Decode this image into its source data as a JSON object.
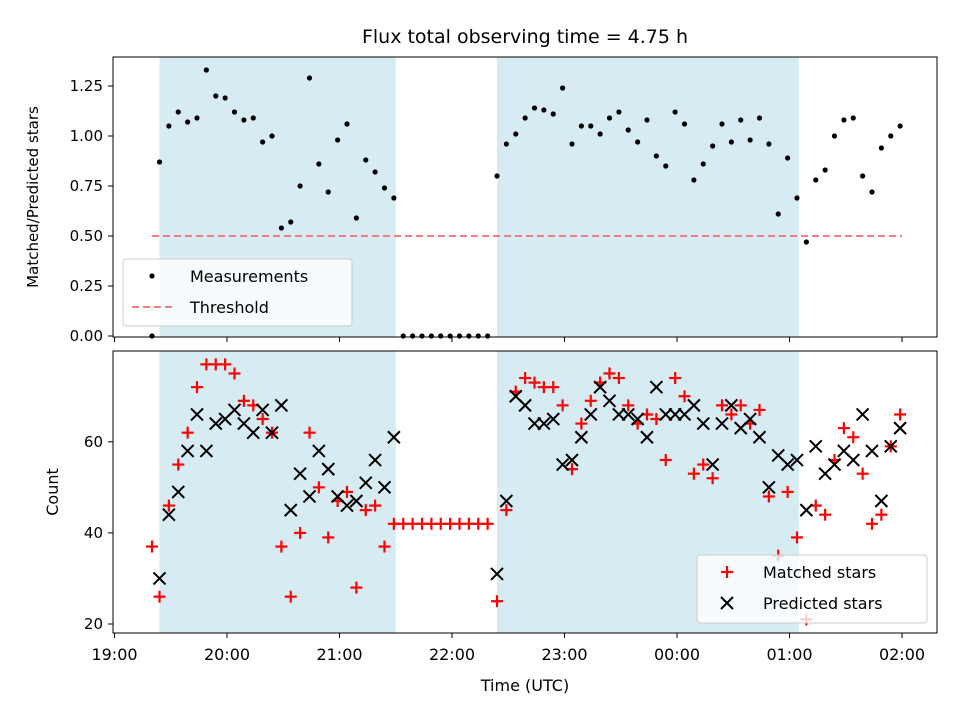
{
  "chart_data": [
    {
      "type": "scatter",
      "title": "Flux total observing time = 4.75 h",
      "xlabel": "",
      "ylabel": "Matched/Predicted stars",
      "ylim": [
        0,
        1.4
      ],
      "yticks": [
        "0.00",
        "0.25",
        "0.50",
        "0.75",
        "1.00",
        "1.25"
      ],
      "x_axis": "time (hours since 19:00 UTC, ticks shown on shared axis)",
      "shaded_intervals": [
        [
          "19:24",
          "21:30"
        ],
        [
          "22:24",
          "01:05"
        ]
      ],
      "threshold": {
        "name": "Threshold",
        "value": 0.5,
        "color": "#f08080",
        "style": "dashed",
        "from": "19:20",
        "to": "02:00"
      },
      "legend": {
        "position": "lower-left",
        "entries": [
          "Measurements",
          "Threshold"
        ]
      },
      "series": [
        {
          "name": "Measurements",
          "color": "#000000",
          "marker": "dot",
          "points": [
            [
              "19:20",
              0.0
            ],
            [
              "19:24",
              0.87
            ],
            [
              "19:29",
              1.05
            ],
            [
              "19:34",
              1.12
            ],
            [
              "19:39",
              1.07
            ],
            [
              "19:44",
              1.09
            ],
            [
              "19:49",
              1.33
            ],
            [
              "19:54",
              1.2
            ],
            [
              "19:59",
              1.19
            ],
            [
              "20:04",
              1.12
            ],
            [
              "20:09",
              1.08
            ],
            [
              "20:14",
              1.09
            ],
            [
              "20:19",
              0.97
            ],
            [
              "20:24",
              1.0
            ],
            [
              "20:29",
              0.54
            ],
            [
              "20:34",
              0.57
            ],
            [
              "20:39",
              0.75
            ],
            [
              "20:44",
              1.29
            ],
            [
              "20:49",
              0.86
            ],
            [
              "20:54",
              0.72
            ],
            [
              "20:59",
              0.98
            ],
            [
              "21:04",
              1.06
            ],
            [
              "21:09",
              0.59
            ],
            [
              "21:14",
              0.88
            ],
            [
              "21:19",
              0.82
            ],
            [
              "21:24",
              0.74
            ],
            [
              "21:29",
              0.69
            ],
            [
              "21:34",
              0.0
            ],
            [
              "21:39",
              0.0
            ],
            [
              "21:44",
              0.0
            ],
            [
              "21:49",
              0.0
            ],
            [
              "21:54",
              0.0
            ],
            [
              "21:59",
              0.0
            ],
            [
              "22:04",
              0.0
            ],
            [
              "22:09",
              0.0
            ],
            [
              "22:14",
              0.0
            ],
            [
              "22:19",
              0.0
            ],
            [
              "22:24",
              0.8
            ],
            [
              "22:29",
              0.96
            ],
            [
              "22:34",
              1.01
            ],
            [
              "22:39",
              1.09
            ],
            [
              "22:44",
              1.14
            ],
            [
              "22:49",
              1.13
            ],
            [
              "22:54",
              1.11
            ],
            [
              "22:59",
              1.24
            ],
            [
              "23:04",
              0.96
            ],
            [
              "23:09",
              1.05
            ],
            [
              "23:14",
              1.05
            ],
            [
              "23:19",
              1.01
            ],
            [
              "23:24",
              1.09
            ],
            [
              "23:29",
              1.12
            ],
            [
              "23:34",
              1.03
            ],
            [
              "23:39",
              0.97
            ],
            [
              "23:44",
              1.08
            ],
            [
              "23:49",
              0.9
            ],
            [
              "23:54",
              0.85
            ],
            [
              "23:59",
              1.12
            ],
            [
              "00:04",
              1.06
            ],
            [
              "00:09",
              0.78
            ],
            [
              "00:14",
              0.86
            ],
            [
              "00:19",
              0.95
            ],
            [
              "00:24",
              1.06
            ],
            [
              "00:29",
              0.97
            ],
            [
              "00:34",
              1.08
            ],
            [
              "00:39",
              0.98
            ],
            [
              "00:44",
              1.09
            ],
            [
              "00:49",
              0.96
            ],
            [
              "00:54",
              0.61
            ],
            [
              "00:59",
              0.89
            ],
            [
              "01:04",
              0.69
            ],
            [
              "01:09",
              0.47
            ],
            [
              "01:14",
              0.78
            ],
            [
              "01:19",
              0.83
            ],
            [
              "01:24",
              1.0
            ],
            [
              "01:29",
              1.08
            ],
            [
              "01:34",
              1.09
            ],
            [
              "01:39",
              0.8
            ],
            [
              "01:44",
              0.72
            ],
            [
              "01:49",
              0.94
            ],
            [
              "01:54",
              1.0
            ],
            [
              "01:59",
              1.05
            ]
          ]
        }
      ]
    },
    {
      "type": "scatter",
      "title": "",
      "xlabel": "Time (UTC)",
      "ylabel": "Count",
      "ylim": [
        19,
        78
      ],
      "yticks": [
        "20",
        "40",
        "60"
      ],
      "xticks": [
        "19:00",
        "20:00",
        "21:00",
        "22:00",
        "23:00",
        "00:00",
        "01:00",
        "02:00"
      ],
      "shaded_intervals": [
        [
          "19:24",
          "21:30"
        ],
        [
          "22:24",
          "01:05"
        ]
      ],
      "legend": {
        "position": "lower-right",
        "entries": [
          "Matched stars",
          "Predicted stars"
        ]
      },
      "series": [
        {
          "name": "Matched stars",
          "color": "#ff0000",
          "marker": "plus",
          "points": [
            [
              "19:20",
              37
            ],
            [
              "19:24",
              26
            ],
            [
              "19:29",
              46
            ],
            [
              "19:34",
              55
            ],
            [
              "19:39",
              62
            ],
            [
              "19:44",
              72
            ],
            [
              "19:49",
              77
            ],
            [
              "19:54",
              77
            ],
            [
              "19:59",
              77
            ],
            [
              "20:04",
              75
            ],
            [
              "20:09",
              69
            ],
            [
              "20:14",
              68
            ],
            [
              "20:19",
              65
            ],
            [
              "20:24",
              62
            ],
            [
              "20:29",
              37
            ],
            [
              "20:34",
              26
            ],
            [
              "20:39",
              40
            ],
            [
              "20:44",
              62
            ],
            [
              "20:49",
              50
            ],
            [
              "20:54",
              39
            ],
            [
              "20:59",
              47
            ],
            [
              "21:04",
              49
            ],
            [
              "21:09",
              28
            ],
            [
              "21:14",
              45
            ],
            [
              "21:19",
              46
            ],
            [
              "21:24",
              37
            ],
            [
              "21:29",
              42
            ],
            [
              "21:34",
              42
            ],
            [
              "21:39",
              42
            ],
            [
              "21:44",
              42
            ],
            [
              "21:49",
              42
            ],
            [
              "21:54",
              42
            ],
            [
              "21:59",
              42
            ],
            [
              "22:04",
              42
            ],
            [
              "22:09",
              42
            ],
            [
              "22:14",
              42
            ],
            [
              "22:19",
              42
            ],
            [
              "22:24",
              25
            ],
            [
              "22:29",
              45
            ],
            [
              "22:34",
              71
            ],
            [
              "22:39",
              74
            ],
            [
              "22:44",
              73
            ],
            [
              "22:49",
              72
            ],
            [
              "22:54",
              72
            ],
            [
              "22:59",
              68
            ],
            [
              "23:04",
              54
            ],
            [
              "23:09",
              64
            ],
            [
              "23:14",
              69
            ],
            [
              "23:19",
              73
            ],
            [
              "23:24",
              75
            ],
            [
              "23:29",
              74
            ],
            [
              "23:34",
              68
            ],
            [
              "23:39",
              64
            ],
            [
              "23:44",
              66
            ],
            [
              "23:49",
              65
            ],
            [
              "23:54",
              56
            ],
            [
              "23:59",
              74
            ],
            [
              "00:04",
              70
            ],
            [
              "00:09",
              53
            ],
            [
              "00:14",
              55
            ],
            [
              "00:19",
              52
            ],
            [
              "00:24",
              68
            ],
            [
              "00:29",
              66
            ],
            [
              "00:34",
              68
            ],
            [
              "00:39",
              64
            ],
            [
              "00:44",
              67
            ],
            [
              "00:49",
              48
            ],
            [
              "00:54",
              35
            ],
            [
              "00:59",
              49
            ],
            [
              "01:04",
              39
            ],
            [
              "01:09",
              21
            ],
            [
              "01:14",
              46
            ],
            [
              "01:19",
              44
            ],
            [
              "01:24",
              56
            ],
            [
              "01:29",
              63
            ],
            [
              "01:34",
              61
            ],
            [
              "01:39",
              53
            ],
            [
              "01:44",
              42
            ],
            [
              "01:49",
              44
            ],
            [
              "01:54",
              59
            ],
            [
              "01:59",
              66
            ]
          ]
        },
        {
          "name": "Predicted stars",
          "color": "#000000",
          "marker": "x",
          "points": [
            [
              "19:24",
              30
            ],
            [
              "19:29",
              44
            ],
            [
              "19:34",
              49
            ],
            [
              "19:39",
              58
            ],
            [
              "19:44",
              66
            ],
            [
              "19:49",
              58
            ],
            [
              "19:54",
              64
            ],
            [
              "19:59",
              65
            ],
            [
              "20:04",
              67
            ],
            [
              "20:09",
              64
            ],
            [
              "20:14",
              62
            ],
            [
              "20:19",
              67
            ],
            [
              "20:24",
              62
            ],
            [
              "20:29",
              68
            ],
            [
              "20:34",
              45
            ],
            [
              "20:39",
              53
            ],
            [
              "20:44",
              48
            ],
            [
              "20:49",
              58
            ],
            [
              "20:54",
              54
            ],
            [
              "20:59",
              48
            ],
            [
              "21:04",
              46
            ],
            [
              "21:09",
              47
            ],
            [
              "21:14",
              51
            ],
            [
              "21:19",
              56
            ],
            [
              "21:24",
              50
            ],
            [
              "21:29",
              61
            ],
            [
              "22:24",
              31
            ],
            [
              "22:29",
              47
            ],
            [
              "22:34",
              70
            ],
            [
              "22:39",
              68
            ],
            [
              "22:44",
              64
            ],
            [
              "22:49",
              64
            ],
            [
              "22:54",
              65
            ],
            [
              "22:59",
              55
            ],
            [
              "23:04",
              56
            ],
            [
              "23:09",
              61
            ],
            [
              "23:14",
              66
            ],
            [
              "23:19",
              72
            ],
            [
              "23:24",
              69
            ],
            [
              "23:29",
              66
            ],
            [
              "23:34",
              66
            ],
            [
              "23:39",
              65
            ],
            [
              "23:44",
              61
            ],
            [
              "23:49",
              72
            ],
            [
              "23:54",
              66
            ],
            [
              "23:59",
              66
            ],
            [
              "00:04",
              66
            ],
            [
              "00:09",
              68
            ],
            [
              "00:14",
              64
            ],
            [
              "00:19",
              55
            ],
            [
              "00:24",
              64
            ],
            [
              "00:29",
              68
            ],
            [
              "00:34",
              63
            ],
            [
              "00:39",
              65
            ],
            [
              "00:44",
              61
            ],
            [
              "00:49",
              50
            ],
            [
              "00:54",
              57
            ],
            [
              "00:59",
              55
            ],
            [
              "01:04",
              56
            ],
            [
              "01:09",
              45
            ],
            [
              "01:14",
              59
            ],
            [
              "01:19",
              53
            ],
            [
              "01:24",
              55
            ],
            [
              "01:29",
              58
            ],
            [
              "01:34",
              56
            ],
            [
              "01:39",
              66
            ],
            [
              "01:44",
              58
            ],
            [
              "01:49",
              47
            ],
            [
              "01:54",
              59
            ],
            [
              "01:59",
              63
            ]
          ]
        }
      ]
    }
  ]
}
